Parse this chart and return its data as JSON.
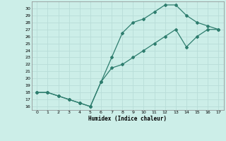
{
  "xlabel": "Humidex (Indice chaleur)",
  "background_color": "#cceee8",
  "grid_color": "#b8ddd8",
  "line_color": "#2e7d6e",
  "x_series1": [
    0,
    1,
    2,
    3,
    4,
    5,
    6,
    7,
    8,
    9,
    10,
    11,
    12,
    13,
    14,
    15,
    16,
    17
  ],
  "y_series1": [
    18,
    18,
    17.5,
    17,
    16.5,
    16,
    19.5,
    23,
    26.5,
    28,
    28.5,
    29.5,
    30.5,
    30.5,
    29,
    28,
    27.5,
    27
  ],
  "x_series2": [
    0,
    1,
    2,
    3,
    4,
    5,
    6,
    7,
    8,
    9,
    10,
    11,
    12,
    13,
    14,
    15,
    16,
    17
  ],
  "y_series2": [
    18,
    18,
    17.5,
    17,
    16.5,
    16,
    19.5,
    21.5,
    22,
    23,
    24,
    25,
    26,
    27,
    24.5,
    26,
    27,
    27
  ],
  "xlim": [
    -0.5,
    17.5
  ],
  "ylim": [
    15.5,
    31
  ],
  "yticks": [
    16,
    17,
    18,
    19,
    20,
    21,
    22,
    23,
    24,
    25,
    26,
    27,
    28,
    29,
    30
  ],
  "xticks": [
    0,
    1,
    2,
    3,
    4,
    5,
    6,
    7,
    8,
    9,
    10,
    11,
    12,
    13,
    14,
    15,
    16,
    17
  ]
}
